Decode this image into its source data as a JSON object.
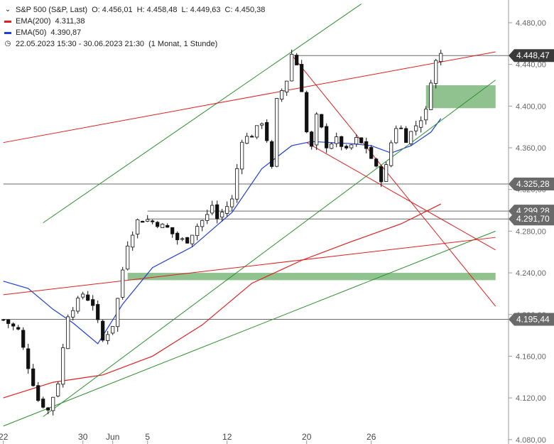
{
  "legend": {
    "instrument": "S&P 500 (S&P, Last)",
    "ohlc": [
      {
        "k": "O:",
        "v": "4.456,01"
      },
      {
        "k": "H:",
        "v": "4.458,48"
      },
      {
        "k": "L:",
        "v": "4.449,63"
      },
      {
        "k": "C:",
        "v": "4.450,38"
      }
    ],
    "ema200": {
      "label": "EMA(200)",
      "value": "4.311,38",
      "color": "#dd1f1f"
    },
    "ema50": {
      "label": "EMA(50)",
      "value": "4.390,87",
      "color": "#1f3fd6"
    },
    "period": "22.05.2023 15:30 - 30.06.2023 21:30",
    "period_note": "(1 Monat, 1 Stunde)"
  },
  "chart_data": {
    "type": "candlestick",
    "ylim": [
      4080,
      4490
    ],
    "y_ticks": [
      "4.080,00",
      "4.120,00",
      "4.160,00",
      "4.200,00",
      "4.240,00",
      "4.280,00",
      "4.320,00",
      "4.360,00",
      "4.400,00",
      "4.440,00",
      "4.480,00"
    ],
    "y_tick_values": [
      4080,
      4120,
      4160,
      4200,
      4240,
      4280,
      4320,
      4360,
      4400,
      4440,
      4480
    ],
    "x_ticks": [
      "22",
      "30",
      "Jun",
      "5",
      "12",
      "20",
      "26"
    ],
    "x_tick_bars": [
      0,
      16,
      22,
      29,
      45,
      61,
      74
    ],
    "grid": false,
    "bar_count": 89,
    "close_path": [
      [
        0,
        4195
      ],
      [
        3,
        4185
      ],
      [
        5,
        4150
      ],
      [
        7,
        4118
      ],
      [
        9,
        4108
      ],
      [
        11,
        4135
      ],
      [
        13,
        4200
      ],
      [
        15,
        4213
      ],
      [
        16,
        4220
      ],
      [
        18,
        4210
      ],
      [
        20,
        4175
      ],
      [
        22,
        4190
      ],
      [
        23,
        4215
      ],
      [
        24,
        4243
      ],
      [
        25,
        4268
      ],
      [
        27,
        4290
      ],
      [
        29,
        4291
      ],
      [
        31,
        4287
      ],
      [
        33,
        4283
      ],
      [
        35,
        4272
      ],
      [
        37,
        4271
      ],
      [
        39,
        4285
      ],
      [
        41,
        4295
      ],
      [
        42,
        4305
      ],
      [
        43,
        4292
      ],
      [
        44,
        4298
      ],
      [
        46,
        4310
      ],
      [
        47,
        4340
      ],
      [
        48,
        4368
      ],
      [
        50,
        4372
      ],
      [
        52,
        4385
      ],
      [
        53,
        4368
      ],
      [
        54,
        4340
      ],
      [
        55,
        4405
      ],
      [
        57,
        4425
      ],
      [
        58,
        4450
      ],
      [
        59,
        4440
      ],
      [
        60,
        4416
      ],
      [
        61,
        4375
      ],
      [
        62,
        4360
      ],
      [
        63,
        4390
      ],
      [
        64,
        4378
      ],
      [
        65,
        4362
      ],
      [
        67,
        4368
      ],
      [
        69,
        4357
      ],
      [
        71,
        4368
      ],
      [
        73,
        4360
      ],
      [
        75,
        4340
      ],
      [
        76,
        4330
      ],
      [
        77,
        4342
      ],
      [
        78,
        4365
      ],
      [
        79,
        4380
      ],
      [
        80,
        4378
      ],
      [
        81,
        4368
      ],
      [
        82,
        4375
      ],
      [
        84,
        4388
      ],
      [
        85,
        4395
      ],
      [
        86,
        4425
      ],
      [
        87,
        4443
      ],
      [
        88,
        4450
      ]
    ],
    "ema50_path": [
      [
        0,
        4232
      ],
      [
        5,
        4225
      ],
      [
        10,
        4205
      ],
      [
        14,
        4192
      ],
      [
        19,
        4172
      ],
      [
        24,
        4210
      ],
      [
        30,
        4245
      ],
      [
        38,
        4265
      ],
      [
        46,
        4298
      ],
      [
        52,
        4340
      ],
      [
        58,
        4362
      ],
      [
        62,
        4366
      ],
      [
        70,
        4364
      ],
      [
        74,
        4362
      ],
      [
        78,
        4355
      ],
      [
        82,
        4362
      ],
      [
        86,
        4375
      ],
      [
        88,
        4388
      ]
    ],
    "ema200_path": [
      [
        0,
        4120
      ],
      [
        10,
        4135
      ],
      [
        20,
        4142
      ],
      [
        30,
        4160
      ],
      [
        40,
        4190
      ],
      [
        50,
        4230
      ],
      [
        60,
        4252
      ],
      [
        70,
        4270
      ],
      [
        80,
        4287
      ],
      [
        88,
        4306
      ]
    ],
    "trendlines": [
      {
        "color": "#2f8f2f",
        "points": [
          [
            0,
            4093
          ],
          [
            99,
            4280
          ]
        ]
      },
      {
        "color": "#2f8f2f",
        "points": [
          [
            8,
            4102
          ],
          [
            99,
            4425
          ]
        ]
      },
      {
        "color": "#2f8f2f",
        "points": [
          [
            8,
            4288
          ],
          [
            72,
            4498
          ]
        ]
      },
      {
        "color": "#dd1f1f",
        "points": [
          [
            0,
            4219
          ],
          [
            99,
            4274
          ]
        ]
      },
      {
        "color": "#dd1f1f",
        "points": [
          [
            0,
            4365
          ],
          [
            99,
            4452
          ]
        ]
      },
      {
        "color": "#dd1f1f",
        "points": [
          [
            58,
            4449
          ],
          [
            99,
            4208
          ]
        ]
      },
      {
        "color": "#dd1f1f",
        "points": [
          [
            61,
            4365
          ],
          [
            99,
            4262
          ]
        ]
      }
    ],
    "zones": [
      {
        "color": "#8fc28f",
        "x0": 25,
        "x1": 99,
        "y0": 4233,
        "y1": 4240
      },
      {
        "color": "#8fc28f",
        "x0": 85,
        "x1": 99,
        "y0": 4398,
        "y1": 4420
      }
    ],
    "horizontal_lines": [
      {
        "value": 4448.47,
        "label": "4.448,47",
        "x0": 58,
        "highlight": true
      },
      {
        "value": 4325.28,
        "label": "4.325,28",
        "x0": 0
      },
      {
        "value": 4299.28,
        "label": "4.299,28",
        "x0": 29
      },
      {
        "value": 4291.7,
        "label": "4.291,70",
        "x0": 29
      },
      {
        "value": 4195.44,
        "label": "4.195,44",
        "x0": 0
      }
    ]
  }
}
